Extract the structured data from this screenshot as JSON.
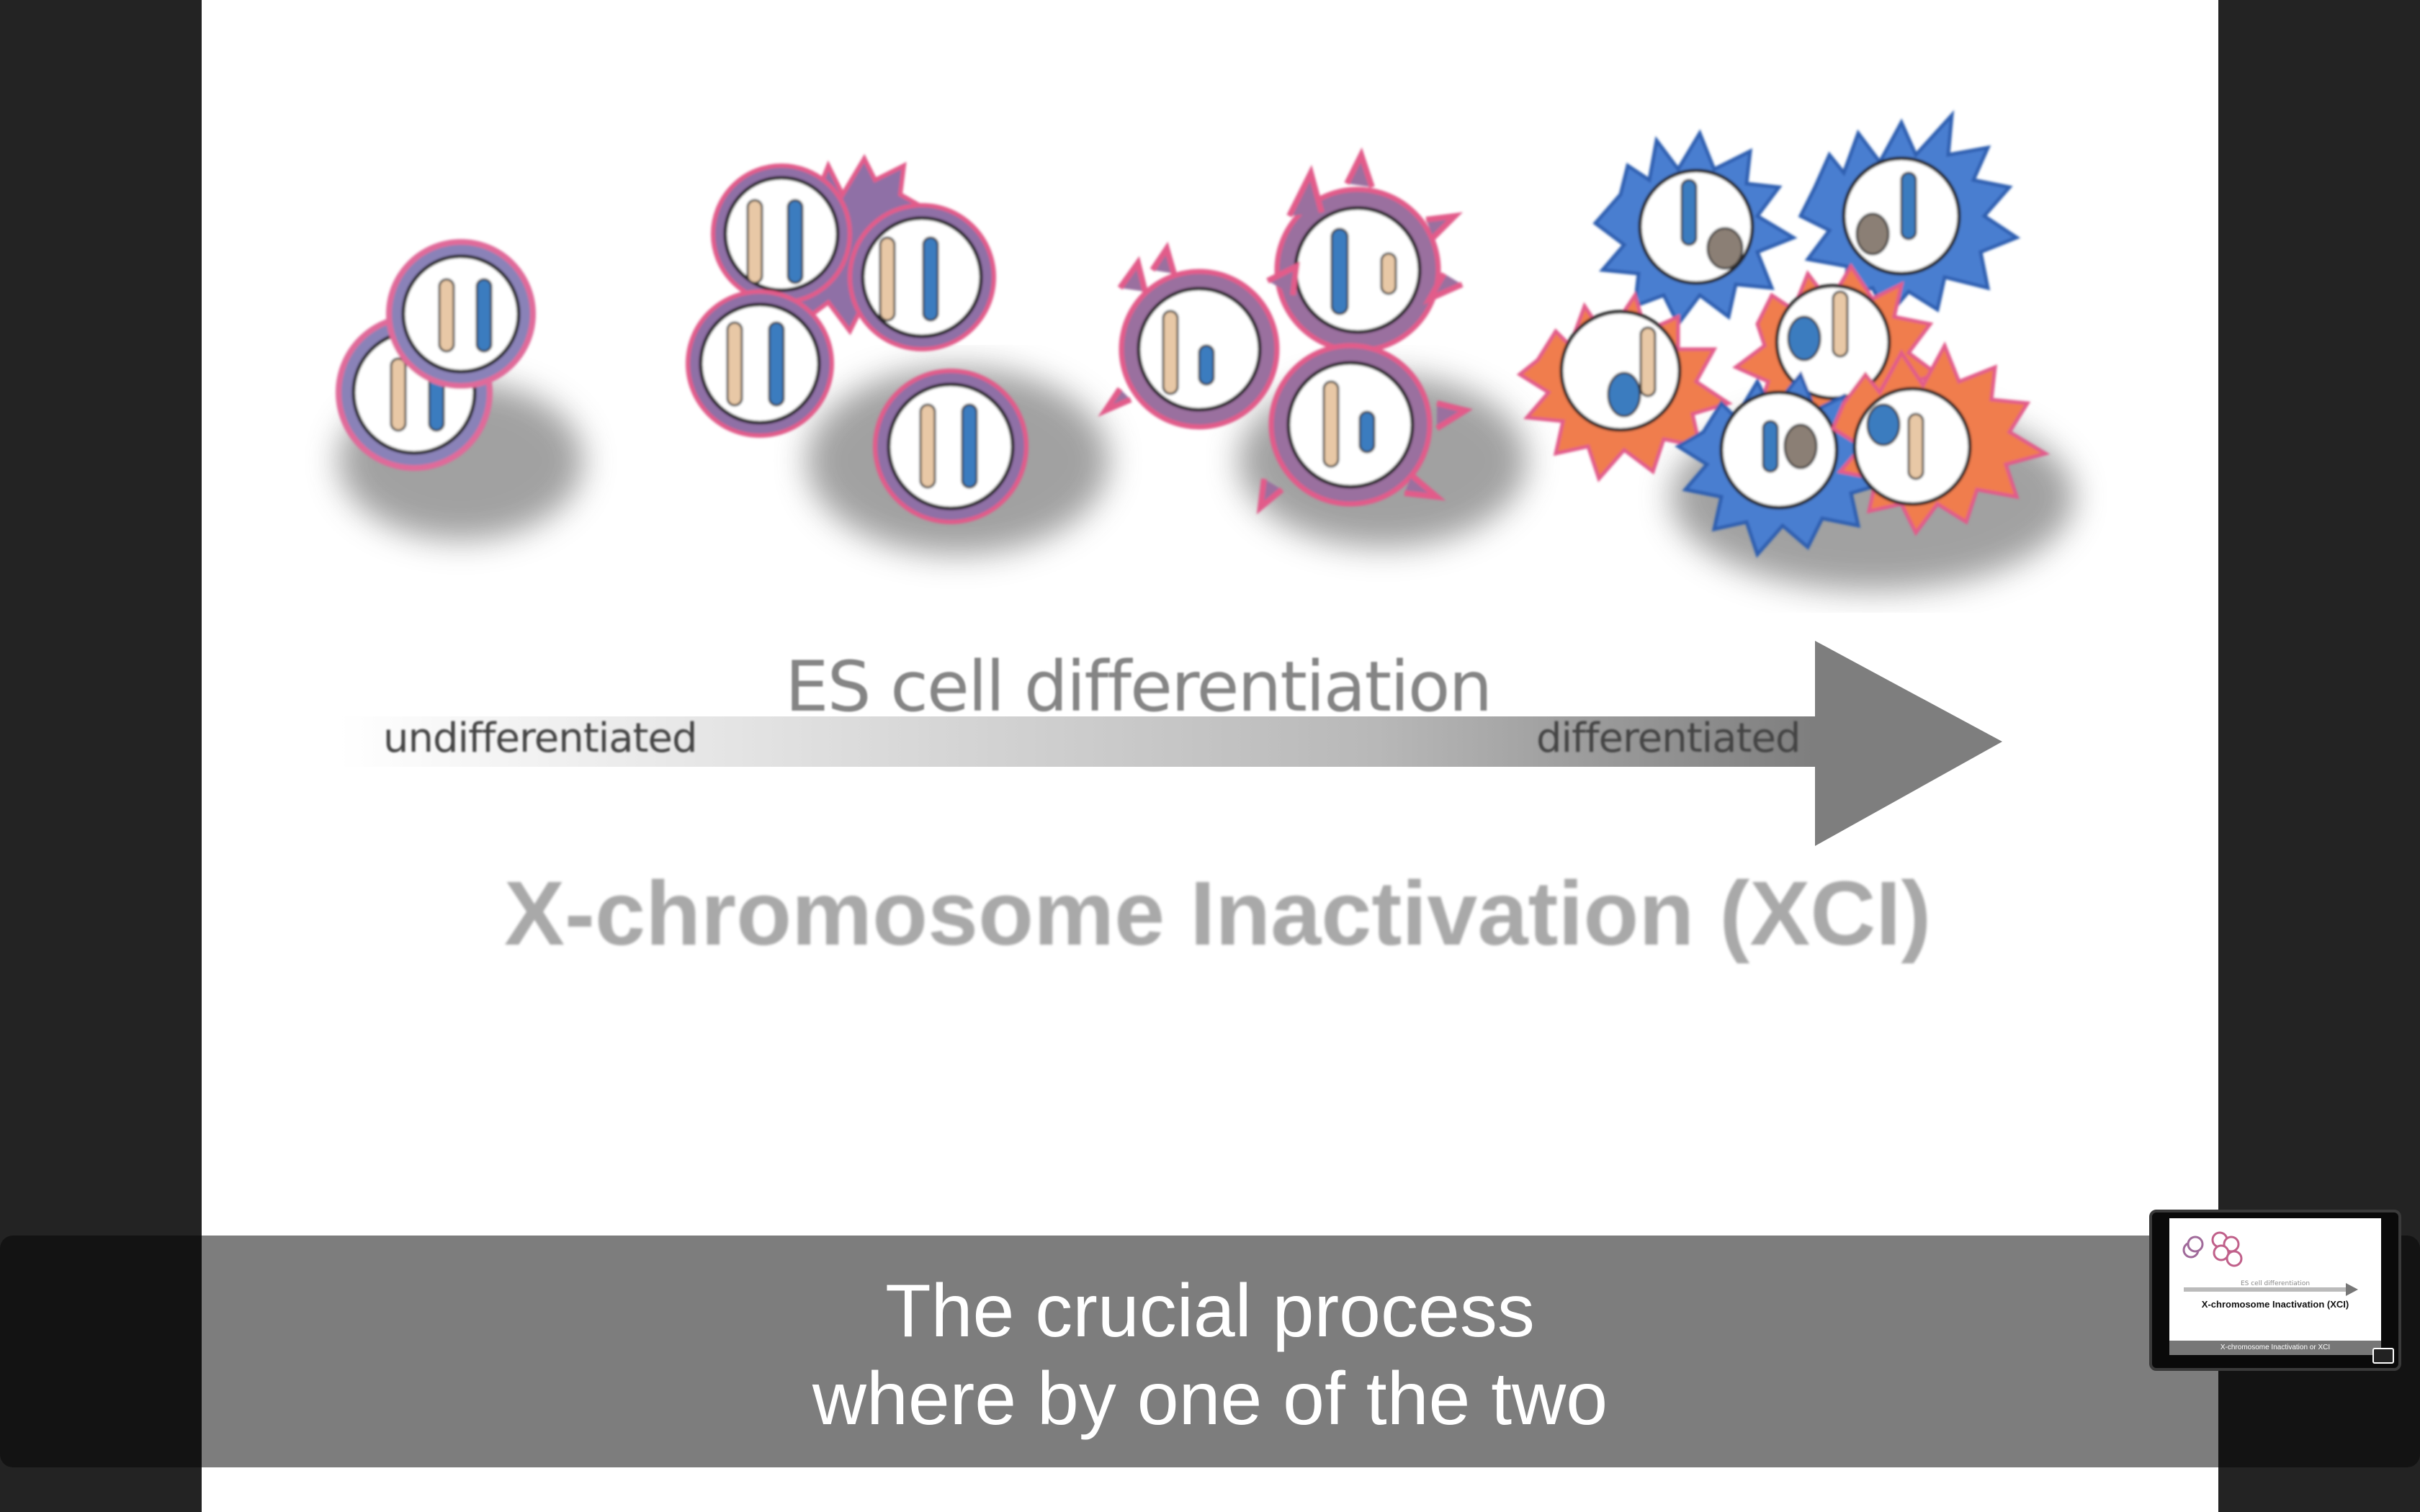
{
  "slide": {
    "stage_label": "ES cell differentiation",
    "start_label": "undifferentiated",
    "end_label": "differentiated",
    "title": "X-chromosome Inactivation (XCI)"
  },
  "caption": {
    "line1": "The crucial process",
    "line2": "where by one of the two"
  },
  "pip": {
    "stage_label": "ES cell differentiation",
    "title": "X-chromosome Inactivation (XCI)",
    "caption": "X-chromosome Inactivation or XCI",
    "icon": "expand-icon"
  },
  "colors": {
    "slide_bg": "#ffffff",
    "outer_bg": "#232323",
    "caption_bg": "#7d7d7d",
    "chromosome_blue": "#3a7bbf",
    "chromosome_tan": "#e8c8a6",
    "spiky_pink": "#e25b8a",
    "spiky_orange": "#f07d4e",
    "spiky_blue": "#4a7ed0",
    "arrow_gray": "#7e7e7e"
  }
}
